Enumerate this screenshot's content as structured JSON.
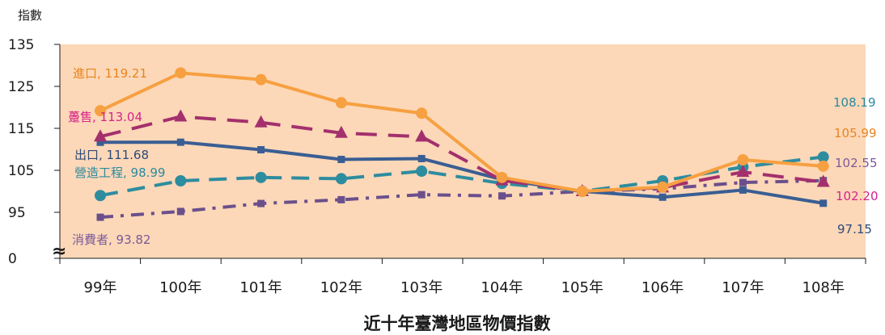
{
  "chart_data": {
    "type": "line",
    "title": "近十年臺灣地區物價指數",
    "ylabel": "指數",
    "categories": [
      "99年",
      "100年",
      "101年",
      "102年",
      "103年",
      "104年",
      "105年",
      "106年",
      "107年",
      "108年"
    ],
    "yticks": [
      "135",
      "125",
      "115",
      "105",
      "95",
      "0"
    ],
    "axis_break": "≈",
    "ylim": [
      90,
      135
    ],
    "grid": false,
    "series": [
      {
        "name": "進口",
        "color": "#f7a041",
        "label_color": "#e8841e",
        "marker": "circle",
        "dash": "solid",
        "values": [
          119.21,
          128.2,
          126.6,
          121.1,
          118.6,
          103.3,
          100.0,
          101.0,
          107.5,
          105.99
        ],
        "start_label": "進口, 119.21",
        "end_label": "105.99"
      },
      {
        "name": "躉售",
        "color": "#a3306d",
        "label_color": "#d6238a",
        "marker": "triangle",
        "dash": "longdash",
        "values": [
          113.04,
          117.8,
          116.4,
          113.9,
          113.0,
          102.6,
          100.0,
          100.9,
          104.6,
          102.2
        ],
        "start_label": "躉售, 113.04",
        "end_label": "102.20"
      },
      {
        "name": "出口",
        "color": "#3a5e93",
        "label_color": "#2e4a78",
        "marker": "square",
        "dash": "solid",
        "values": [
          111.68,
          111.7,
          109.9,
          107.6,
          107.8,
          102.8,
          100.0,
          98.6,
          100.3,
          97.15
        ],
        "start_label": "出口, 111.68",
        "end_label": "97.15"
      },
      {
        "name": "營造工程",
        "color": "#2e8c9f",
        "label_color": "#2a8aa0",
        "marker": "circle",
        "dash": "dash",
        "values": [
          98.99,
          102.5,
          103.3,
          103.0,
          104.8,
          101.9,
          100.0,
          102.5,
          105.8,
          108.19
        ],
        "start_label": "營造工程, 98.99",
        "end_label": "108.19"
      },
      {
        "name": "消費者",
        "color": "#6b4f8c",
        "label_color": "#7a5a9a",
        "marker": "square",
        "dash": "dashdot",
        "values": [
          93.82,
          95.2,
          97.1,
          98.0,
          99.2,
          98.9,
          100.0,
          100.6,
          102.1,
          102.55
        ],
        "start_label": "消費者, 93.82",
        "end_label": "102.55"
      }
    ],
    "colors": {
      "plot_background": "#fcd8b8",
      "axis": "#1a1a1a"
    }
  }
}
